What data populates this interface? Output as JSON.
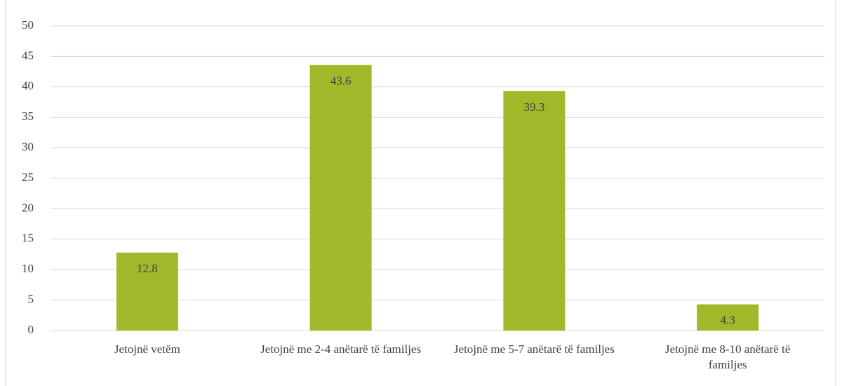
{
  "chart_data": {
    "type": "bar",
    "categories": [
      "Jetojnë vetëm",
      "Jetojnë me 2-4 anëtarë të familjes",
      "Jetojnë me 5-7 anëtarë të familjes",
      "Jetojnë me 8-10 anëtarë të familjes"
    ],
    "values": [
      12.8,
      43.6,
      39.3,
      4.3
    ],
    "color": "#a2b82a",
    "ylim": [
      0,
      50
    ],
    "yticks": [
      0,
      5,
      10,
      15,
      20,
      25,
      30,
      35,
      40,
      45,
      50
    ],
    "grid": true
  }
}
